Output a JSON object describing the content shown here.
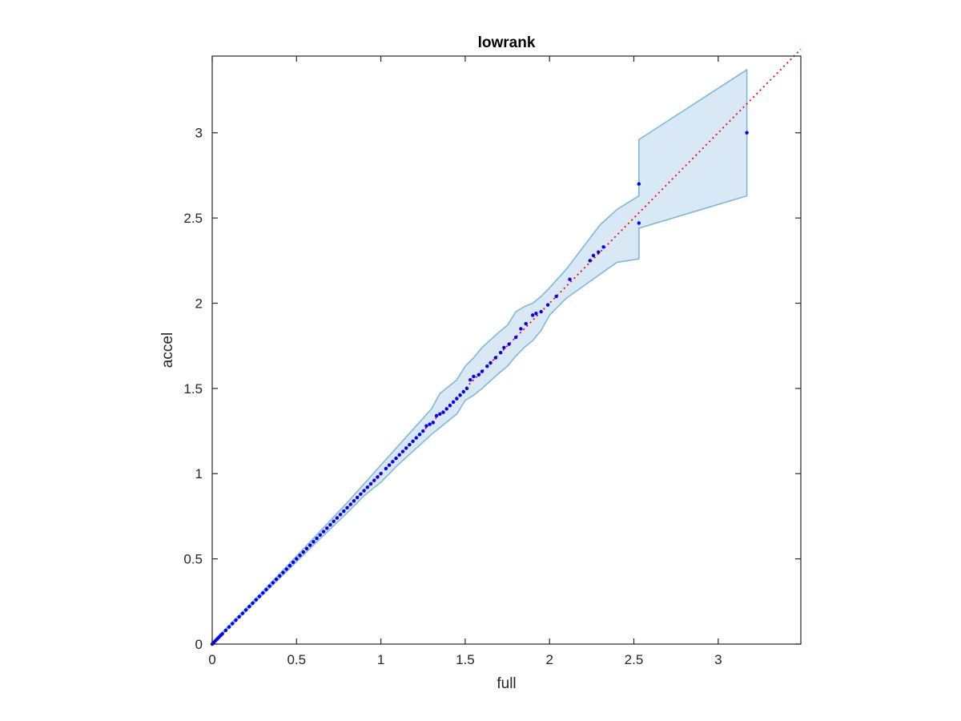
{
  "chart_data": {
    "type": "scatter",
    "title": "lowrank",
    "xlabel": "full",
    "ylabel": "accel",
    "xlim": [
      0,
      3.49
    ],
    "ylim": [
      0,
      3.45
    ],
    "xticks": [
      0,
      0.5,
      1,
      1.5,
      2,
      2.5,
      3
    ],
    "yticks": [
      0,
      0.5,
      1,
      1.5,
      2,
      2.5,
      3
    ],
    "xtick_labels": [
      "0",
      "0.5",
      "1",
      "1.5",
      "2",
      "2.5",
      "3"
    ],
    "ytick_labels": [
      "0",
      "0.5",
      "1",
      "1.5",
      "2",
      "2.5",
      "3"
    ],
    "grid": false,
    "colors": {
      "points": "#0000ff",
      "reference_line": "#ff0000",
      "band_fill": "#d9e8f5",
      "band_edge": "#7fb8dc",
      "axes": "#262626"
    },
    "reference_line": {
      "style": "dotted",
      "x": [
        0,
        3.49
      ],
      "y": [
        0,
        3.49
      ]
    },
    "band": {
      "x": [
        0,
        0.3,
        0.6,
        0.8,
        0.9,
        1.0,
        1.1,
        1.2,
        1.3,
        1.35,
        1.45,
        1.5,
        1.55,
        1.6,
        1.7,
        1.75,
        1.8,
        1.85,
        1.9,
        1.95,
        2.0,
        2.1,
        2.2,
        2.3,
        2.4,
        2.53,
        2.53,
        3.17
      ],
      "upper": [
        0.01,
        0.31,
        0.62,
        0.83,
        0.94,
        1.05,
        1.16,
        1.27,
        1.38,
        1.47,
        1.55,
        1.63,
        1.68,
        1.74,
        1.83,
        1.87,
        1.95,
        1.98,
        2.0,
        2.04,
        2.09,
        2.2,
        2.33,
        2.46,
        2.55,
        2.63,
        2.96,
        3.37
      ],
      "lower": [
        0.0,
        0.29,
        0.58,
        0.77,
        0.87,
        0.95,
        1.05,
        1.14,
        1.23,
        1.27,
        1.35,
        1.43,
        1.46,
        1.5,
        1.59,
        1.63,
        1.69,
        1.74,
        1.78,
        1.84,
        1.93,
        2.03,
        2.1,
        2.17,
        2.24,
        2.26,
        2.44,
        2.63
      ]
    },
    "series": [
      {
        "x": [
          0.0,
          0.01,
          0.02,
          0.03,
          0.04,
          0.05,
          0.06,
          0.08,
          0.1,
          0.12,
          0.14,
          0.16,
          0.18,
          0.2,
          0.22,
          0.24,
          0.26,
          0.28,
          0.3,
          0.32,
          0.34,
          0.36,
          0.38,
          0.4,
          0.42,
          0.44,
          0.46,
          0.48,
          0.5,
          0.52,
          0.54,
          0.56,
          0.58,
          0.6,
          0.62,
          0.64,
          0.66,
          0.68,
          0.7,
          0.72,
          0.74,
          0.76,
          0.78,
          0.8,
          0.82,
          0.84,
          0.86,
          0.88,
          0.9,
          0.92,
          0.94,
          0.96,
          0.98,
          1.0,
          1.03,
          1.05,
          1.07,
          1.09,
          1.11,
          1.13,
          1.15,
          1.17,
          1.19,
          1.21,
          1.23,
          1.25,
          1.27,
          1.29,
          1.31,
          1.33,
          1.35,
          1.37,
          1.39,
          1.41,
          1.43,
          1.45,
          1.47,
          1.49,
          1.51,
          1.53,
          1.55,
          1.58,
          1.6,
          1.63,
          1.65,
          1.68,
          1.71,
          1.73,
          1.76,
          1.8,
          1.83,
          1.86,
          1.9,
          1.92,
          1.95,
          1.99,
          2.04,
          2.12,
          2.24,
          2.26,
          2.29,
          2.32,
          2.53,
          2.53,
          3.17
        ],
        "y": [
          0.0,
          0.01,
          0.02,
          0.03,
          0.04,
          0.05,
          0.06,
          0.08,
          0.1,
          0.12,
          0.14,
          0.16,
          0.18,
          0.2,
          0.22,
          0.24,
          0.26,
          0.28,
          0.3,
          0.32,
          0.34,
          0.36,
          0.38,
          0.4,
          0.42,
          0.44,
          0.46,
          0.48,
          0.5,
          0.52,
          0.54,
          0.56,
          0.58,
          0.6,
          0.62,
          0.64,
          0.66,
          0.68,
          0.7,
          0.72,
          0.74,
          0.76,
          0.78,
          0.8,
          0.82,
          0.84,
          0.86,
          0.88,
          0.9,
          0.92,
          0.94,
          0.96,
          0.98,
          1.0,
          1.03,
          1.05,
          1.07,
          1.09,
          1.11,
          1.13,
          1.15,
          1.17,
          1.19,
          1.21,
          1.23,
          1.25,
          1.28,
          1.29,
          1.3,
          1.34,
          1.35,
          1.36,
          1.38,
          1.4,
          1.42,
          1.44,
          1.46,
          1.48,
          1.5,
          1.55,
          1.57,
          1.58,
          1.6,
          1.63,
          1.65,
          1.68,
          1.71,
          1.74,
          1.76,
          1.8,
          1.85,
          1.88,
          1.93,
          1.94,
          1.95,
          1.99,
          2.04,
          2.14,
          2.25,
          2.28,
          2.3,
          2.33,
          2.7,
          2.47,
          3.0
        ]
      }
    ]
  }
}
